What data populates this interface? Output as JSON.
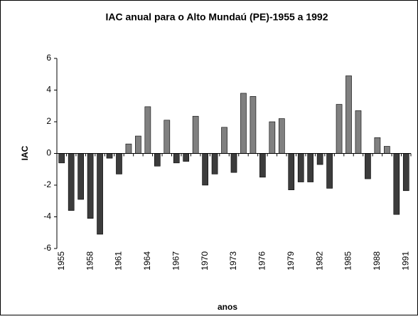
{
  "chart_data": {
    "type": "bar",
    "title": "IAC anual para o Alto Mundaú (PE)-1955 a 1992",
    "x_label": "anos",
    "y_label": "IAC",
    "categories": [
      "1955",
      null,
      null,
      "1958",
      null,
      null,
      "1961",
      null,
      null,
      "1964",
      null,
      null,
      "1967",
      null,
      null,
      "1970",
      null,
      null,
      "1973",
      null,
      null,
      "1976",
      null,
      null,
      "1979",
      null,
      null,
      "1982",
      null,
      null,
      "1985",
      null,
      null,
      "1988",
      null,
      null,
      "1991"
    ],
    "values": [
      -0.6,
      -3.6,
      -2.9,
      -4.1,
      -5.1,
      -0.3,
      -1.3,
      0.6,
      1.1,
      2.95,
      -0.8,
      2.1,
      -0.6,
      -0.5,
      2.35,
      -2.0,
      -1.3,
      1.65,
      -1.2,
      3.8,
      3.6,
      -1.5,
      2.0,
      2.2,
      -2.3,
      -1.8,
      -1.8,
      -0.7,
      -2.2,
      3.1,
      4.9,
      2.7,
      -1.6,
      1.0,
      0.45,
      -3.85,
      -2.35
    ],
    "positive_color": "#808080",
    "negative_color": "#3c3c3c",
    "ylim": [
      -6,
      6
    ],
    "yticks": [
      -6,
      -4,
      -2,
      0,
      2,
      4,
      6
    ],
    "grid": false
  }
}
